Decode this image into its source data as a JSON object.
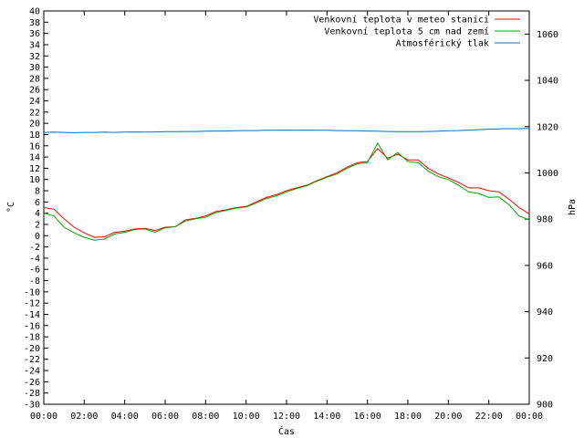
{
  "chart_data": {
    "type": "line",
    "xlabel": "Čas",
    "ylabel": "°C",
    "y2label": "hPa",
    "ylim": [
      -30,
      40
    ],
    "y2lim": [
      900,
      1070
    ],
    "x_ticks": [
      "00:00",
      "02:00",
      "04:00",
      "06:00",
      "08:00",
      "10:00",
      "12:00",
      "14:00",
      "16:00",
      "18:00",
      "20:00",
      "22:00",
      "00:00"
    ],
    "y_ticks": [
      -30,
      -28,
      -26,
      -24,
      -22,
      -20,
      -18,
      -16,
      -14,
      -12,
      -10,
      -8,
      -6,
      -4,
      -2,
      0,
      2,
      4,
      6,
      8,
      10,
      12,
      14,
      16,
      18,
      20,
      22,
      24,
      26,
      28,
      30,
      32,
      34,
      36,
      38,
      40
    ],
    "y2_ticks": [
      900,
      920,
      940,
      960,
      980,
      1000,
      1020,
      1040,
      1060
    ],
    "grid": false,
    "legend_position": "top-right",
    "x_hours": [
      0,
      0.5,
      1,
      1.5,
      2,
      2.5,
      3,
      3.5,
      4,
      4.5,
      5,
      5.5,
      6,
      6.5,
      7,
      7.5,
      8,
      8.5,
      9,
      9.5,
      10,
      10.5,
      11,
      11.5,
      12,
      12.5,
      13,
      13.5,
      14,
      14.5,
      15,
      15.5,
      16,
      16.5,
      17,
      17.5,
      18,
      18.5,
      19,
      19.5,
      20,
      20.5,
      21,
      21.5,
      22,
      22.5,
      23,
      23.5,
      24
    ],
    "series": [
      {
        "name": "Venkovní teplota v meteo stanici",
        "color": "#ff0000",
        "axis": "left",
        "values": [
          5.0,
          4.7,
          3.0,
          1.5,
          0.5,
          -0.3,
          -0.2,
          0.6,
          0.8,
          1.2,
          1.3,
          0.9,
          1.5,
          1.6,
          2.8,
          3.1,
          3.5,
          4.3,
          4.6,
          5.0,
          5.2,
          6.0,
          6.8,
          7.3,
          8.0,
          8.5,
          9.0,
          9.8,
          10.5,
          11.2,
          12.2,
          13.0,
          13.2,
          15.5,
          13.8,
          14.5,
          13.5,
          13.5,
          12.0,
          11.0,
          10.3,
          9.5,
          8.5,
          8.5,
          8.0,
          7.8,
          6.5,
          5.0,
          3.9
        ]
      },
      {
        "name": "Venkovní teplota 5 cm nad zemí",
        "color": "#00aa00",
        "axis": "left",
        "values": [
          4.0,
          3.5,
          1.5,
          0.5,
          -0.3,
          -0.8,
          -0.6,
          0.3,
          0.6,
          1.1,
          1.2,
          0.6,
          1.4,
          1.6,
          2.6,
          3.0,
          3.3,
          4.1,
          4.5,
          4.9,
          5.1,
          5.8,
          6.6,
          7.1,
          7.8,
          8.4,
          8.9,
          9.7,
          10.4,
          11.0,
          12.0,
          12.8,
          13.0,
          16.5,
          13.5,
          14.8,
          13.2,
          13.0,
          11.5,
          10.5,
          10.0,
          9.0,
          7.8,
          7.5,
          6.8,
          6.9,
          5.5,
          3.5,
          2.8
        ]
      },
      {
        "name": "Atmosférický tlak",
        "color": "#0072bd",
        "axis": "right",
        "values": [
          1017.5,
          1017.6,
          1017.5,
          1017.4,
          1017.5,
          1017.5,
          1017.6,
          1017.5,
          1017.6,
          1017.7,
          1017.6,
          1017.7,
          1017.8,
          1017.8,
          1017.9,
          1017.9,
          1018.0,
          1018.1,
          1018.1,
          1018.2,
          1018.3,
          1018.3,
          1018.4,
          1018.4,
          1018.5,
          1018.4,
          1018.5,
          1018.4,
          1018.4,
          1018.3,
          1018.2,
          1018.2,
          1018.1,
          1018.0,
          1017.9,
          1017.8,
          1017.8,
          1017.8,
          1017.9,
          1018.0,
          1018.2,
          1018.3,
          1018.5,
          1018.7,
          1018.9,
          1019.0,
          1019.1,
          1019.1,
          1019.2
        ]
      }
    ]
  }
}
